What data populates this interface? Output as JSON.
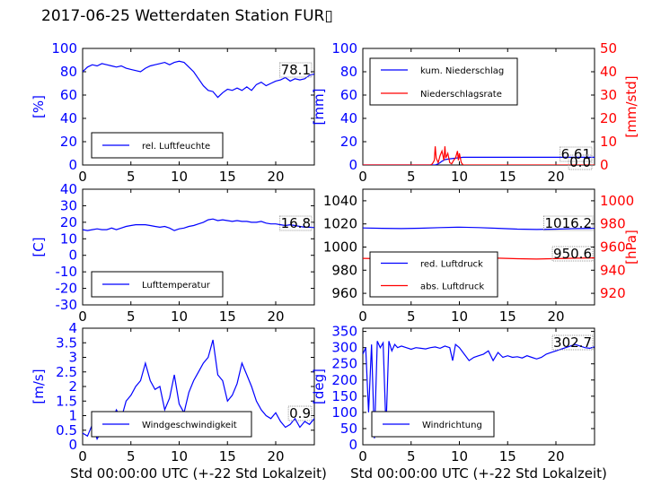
{
  "title": "2017-06-25 Wetterdaten Station FUR▯",
  "colors": {
    "primary": "#0000ff",
    "secondary": "#ff0000",
    "axis": "#000000"
  },
  "chart_data": [
    {
      "type": "line",
      "panel": "humidity",
      "ylabel": "[%]",
      "xlim": [
        0,
        24
      ],
      "ylim": [
        0,
        100
      ],
      "xticks": [
        0,
        5,
        10,
        15,
        20
      ],
      "yticks": [
        0,
        20,
        40,
        60,
        80,
        100
      ],
      "legend": "bottom-left",
      "grid": false,
      "annotation": "78.1",
      "series": [
        {
          "name": "rel. Luftfeuchte",
          "color": "#0000ff",
          "x": [
            0,
            0.5,
            1,
            1.5,
            2,
            2.5,
            3,
            3.5,
            4,
            4.5,
            5,
            5.5,
            6,
            6.5,
            7,
            7.5,
            8,
            8.5,
            9,
            9.5,
            10,
            10.5,
            11,
            11.5,
            12,
            12.5,
            13,
            13.5,
            14,
            14.5,
            15,
            15.5,
            16,
            16.5,
            17,
            17.5,
            18,
            18.5,
            19,
            19.5,
            20,
            20.5,
            21,
            21.5,
            22,
            22.5,
            23,
            23.5,
            24
          ],
          "y": [
            80,
            84,
            86,
            85,
            87,
            86,
            85,
            84,
            85,
            83,
            82,
            81,
            80,
            83,
            85,
            86,
            87,
            88,
            86,
            88,
            89,
            88,
            84,
            80,
            74,
            68,
            64,
            63,
            58,
            62,
            65,
            64,
            66,
            64,
            67,
            64,
            69,
            71,
            68,
            70,
            72,
            73,
            75,
            72,
            74,
            73,
            74,
            77,
            78
          ]
        }
      ]
    },
    {
      "type": "line",
      "panel": "precipitation",
      "ylabel": "[mm]",
      "ylabel2": "[mm/std]",
      "xlim": [
        0,
        24
      ],
      "ylim": [
        0,
        100
      ],
      "ylim2": [
        0,
        50
      ],
      "xticks": [
        0,
        5,
        10,
        15,
        20
      ],
      "yticks": [
        0,
        20,
        40,
        60,
        80,
        100
      ],
      "yticks2": [
        0,
        10,
        20,
        30,
        40,
        50
      ],
      "legend": "top-left",
      "grid": false,
      "annotations": [
        "6.61",
        "0.0"
      ],
      "series": [
        {
          "name": "kum. Niederschlag",
          "color": "#0000ff",
          "axis": "left",
          "x": [
            0,
            7.5,
            7.6,
            7.8,
            8.0,
            8.2,
            8.5,
            9.0,
            9.5,
            10.0,
            10.2,
            10.4,
            24
          ],
          "y": [
            0,
            0,
            0.4,
            1.0,
            2.0,
            3.2,
            4.6,
            5.3,
            5.8,
            6.2,
            6.5,
            6.61,
            6.61
          ]
        },
        {
          "name": "Niederschlagsrate",
          "color": "#ff0000",
          "axis": "right",
          "x": [
            0,
            7.0,
            7.2,
            7.4,
            7.5,
            7.6,
            7.8,
            8.0,
            8.2,
            8.4,
            8.5,
            8.6,
            8.8,
            9.0,
            9.2,
            9.4,
            9.6,
            9.8,
            9.9,
            10.0,
            10.2,
            10.4,
            10.6,
            24
          ],
          "y": [
            0,
            0,
            0.5,
            2,
            8,
            3,
            1,
            4,
            6,
            2,
            8,
            3,
            5,
            1,
            0.5,
            2,
            3,
            6,
            2,
            5,
            1,
            0,
            0,
            0
          ]
        }
      ]
    },
    {
      "type": "line",
      "panel": "temperature",
      "ylabel": "[C]",
      "xlim": [
        0,
        24
      ],
      "ylim": [
        -30,
        40
      ],
      "xticks": [
        0,
        5,
        10,
        15,
        20
      ],
      "yticks": [
        -30,
        -20,
        -10,
        0,
        10,
        20,
        30,
        40
      ],
      "legend": "bottom-left",
      "grid": false,
      "annotation": "16.8",
      "series": [
        {
          "name": "Lufttemperatur",
          "color": "#0000ff",
          "x": [
            0,
            0.5,
            1,
            1.5,
            2,
            2.5,
            3,
            3.5,
            4,
            4.5,
            5,
            5.5,
            6,
            6.5,
            7,
            7.5,
            8,
            8.5,
            9,
            9.5,
            10,
            10.5,
            11,
            11.5,
            12,
            12.5,
            13,
            13.5,
            14,
            14.5,
            15,
            15.5,
            16,
            16.5,
            17,
            17.5,
            18,
            18.5,
            19,
            19.5,
            20,
            20.5,
            21,
            21.5,
            22,
            22.5,
            23,
            23.5,
            24
          ],
          "y": [
            15.5,
            15,
            15.5,
            16,
            15.5,
            15.5,
            16.5,
            15.5,
            16.5,
            17.5,
            18,
            18.5,
            18.5,
            18.5,
            18,
            17.5,
            17,
            17.5,
            16.5,
            15,
            16,
            16.5,
            17.5,
            18,
            19,
            20,
            21.5,
            22,
            21,
            21.5,
            21,
            20.5,
            21,
            20.5,
            20.5,
            20,
            20,
            20.5,
            19.5,
            19,
            19,
            18.5,
            18,
            18.5,
            18,
            17.5,
            17,
            17,
            16.8
          ]
        }
      ]
    },
    {
      "type": "line",
      "panel": "pressure",
      "ylabel2": "[hPa]",
      "xlim": [
        0,
        24
      ],
      "ylim": [
        950,
        1050
      ],
      "ylim2": [
        910,
        1010
      ],
      "xticks": [
        0,
        5,
        10,
        15,
        20
      ],
      "yticks": [
        960,
        980,
        1000,
        1020,
        1040
      ],
      "yticks2": [
        920,
        940,
        960,
        980,
        1000
      ],
      "legend": "bottom-left",
      "grid": false,
      "annotations": [
        "1016.2",
        "950.6"
      ],
      "series": [
        {
          "name": "red. Luftdruck",
          "color": "#0000ff",
          "axis": "left",
          "x": [
            0,
            2,
            4,
            6,
            8,
            10,
            12,
            14,
            16,
            18,
            20,
            22,
            24
          ],
          "y": [
            1016.5,
            1016.2,
            1016.0,
            1016.3,
            1016.8,
            1017.2,
            1016.8,
            1016.2,
            1015.5,
            1015.2,
            1015.5,
            1016.0,
            1016.2
          ]
        },
        {
          "name": "abs. Luftdruck",
          "color": "#ff0000",
          "axis": "right",
          "x": [
            0,
            2,
            4,
            6,
            8,
            10,
            12,
            14,
            16,
            18,
            20,
            22,
            24
          ],
          "y": [
            950.2,
            949.9,
            949.8,
            950.0,
            950.6,
            951.2,
            950.8,
            950.4,
            949.9,
            949.6,
            950.0,
            950.4,
            950.6
          ]
        }
      ]
    },
    {
      "type": "line",
      "panel": "windspeed",
      "ylabel": "[m/s]",
      "xlabel": "Std 00:00:00 UTC (+-22 Std Lokalzeit)",
      "xlim": [
        0,
        24
      ],
      "ylim": [
        0,
        4
      ],
      "xticks": [
        0,
        5,
        10,
        15,
        20
      ],
      "yticks": [
        0.0,
        0.5,
        1.0,
        1.5,
        2.0,
        2.5,
        3.0,
        3.5,
        4.0
      ],
      "legend": "bottom-center",
      "grid": false,
      "annotation": "0.9",
      "series": [
        {
          "name": "Windgeschwindigkeit",
          "color": "#0000ff",
          "x": [
            0,
            0.5,
            1,
            1.5,
            2,
            2.5,
            3,
            3.5,
            4,
            4.5,
            5,
            5.5,
            6,
            6.5,
            7,
            7.5,
            8,
            8.5,
            9,
            9.5,
            10,
            10.5,
            11,
            11.5,
            12,
            12.5,
            13,
            13.5,
            14,
            14.5,
            15,
            15.5,
            16,
            16.5,
            17,
            17.5,
            18,
            18.5,
            19,
            19.5,
            20,
            20.5,
            21,
            21.5,
            22,
            22.5,
            23,
            23.5,
            24
          ],
          "y": [
            0.4,
            0.3,
            0.7,
            0.2,
            0.5,
            1.0,
            0.8,
            1.2,
            0.9,
            1.5,
            1.7,
            2.0,
            2.2,
            2.8,
            2.2,
            1.9,
            2.0,
            1.2,
            1.6,
            2.4,
            1.4,
            1.1,
            1.8,
            2.2,
            2.5,
            2.8,
            3.0,
            3.6,
            2.4,
            2.2,
            1.5,
            1.7,
            2.1,
            2.8,
            2.4,
            2.0,
            1.5,
            1.2,
            1.0,
            0.9,
            1.1,
            0.8,
            0.6,
            0.7,
            0.9,
            0.6,
            0.8,
            0.7,
            0.9
          ]
        }
      ]
    },
    {
      "type": "line",
      "panel": "winddirection",
      "ylabel": "[deg]",
      "xlabel": "Std 00:00:00 UTC (+-22 Std Lokalzeit)",
      "xlim": [
        0,
        24
      ],
      "ylim": [
        0,
        360
      ],
      "xticks": [
        0,
        5,
        10,
        15,
        20
      ],
      "yticks": [
        0,
        50,
        100,
        150,
        200,
        250,
        300,
        350
      ],
      "legend": "bottom-left",
      "grid": false,
      "annotation": "302.7",
      "series": [
        {
          "name": "Windrichtung",
          "color": "#0000ff",
          "x": [
            0,
            0.3,
            0.6,
            0.9,
            1.2,
            1.5,
            1.8,
            2.1,
            2.4,
            2.7,
            3.0,
            3.3,
            3.6,
            4.0,
            4.5,
            5,
            5.5,
            6,
            6.5,
            7,
            7.5,
            8,
            8.5,
            9,
            9.3,
            9.6,
            10,
            10.5,
            11,
            11.5,
            12,
            12.5,
            13,
            13.5,
            14,
            14.5,
            15,
            15.5,
            16,
            16.5,
            17,
            17.5,
            18,
            18.5,
            19,
            19.5,
            20,
            20.5,
            21,
            21.5,
            22,
            22.5,
            23,
            23.5,
            24
          ],
          "y": [
            280,
            300,
            100,
            310,
            20,
            320,
            300,
            315,
            50,
            320,
            290,
            310,
            300,
            305,
            300,
            295,
            300,
            298,
            296,
            300,
            302,
            298,
            305,
            300,
            260,
            310,
            300,
            280,
            260,
            270,
            275,
            280,
            290,
            260,
            285,
            270,
            275,
            270,
            272,
            268,
            275,
            270,
            265,
            270,
            280,
            285,
            290,
            295,
            300,
            305,
            310,
            305,
            300,
            298,
            302.7
          ]
        }
      ]
    }
  ]
}
